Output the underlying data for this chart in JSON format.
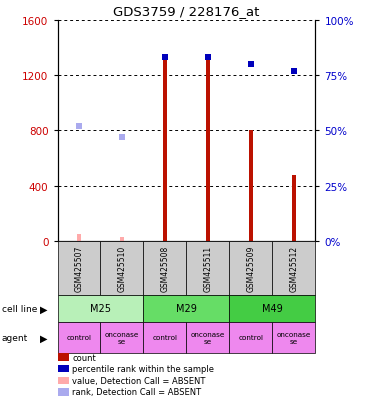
{
  "title": "GDS3759 / 228176_at",
  "samples": [
    "GSM425507",
    "GSM425510",
    "GSM425508",
    "GSM425511",
    "GSM425509",
    "GSM425512"
  ],
  "counts": [
    50,
    30,
    1340,
    1310,
    800,
    480
  ],
  "ranks_pct": [
    52,
    47,
    83,
    83,
    80,
    77
  ],
  "absent_mask": [
    true,
    true,
    false,
    false,
    false,
    false
  ],
  "cell_lines": [
    [
      "M25",
      0,
      2
    ],
    [
      "M29",
      2,
      4
    ],
    [
      "M49",
      4,
      6
    ]
  ],
  "cell_line_colors": [
    "#99ee99",
    "#44cc44",
    "#33bb33"
  ],
  "agents": [
    "control",
    "onconase\nse",
    "control",
    "onconase\nse",
    "control",
    "onconase\nse"
  ],
  "agent_color": "#ee88ee",
  "ylim_left": [
    0,
    1600
  ],
  "ylim_right": [
    0,
    100
  ],
  "yticks_left": [
    0,
    400,
    800,
    1200,
    1600
  ],
  "yticks_right": [
    0,
    25,
    50,
    75,
    100
  ],
  "bar_color": "#bb1100",
  "bar_color_absent": "#ffaaaa",
  "dot_color": "#0000bb",
  "dot_color_absent": "#aaaaee",
  "sample_bg_color": "#cccccc",
  "legend_items": [
    {
      "label": "count",
      "color": "#bb1100"
    },
    {
      "label": "percentile rank within the sample",
      "color": "#0000bb"
    },
    {
      "label": "value, Detection Call = ABSENT",
      "color": "#ffaaaa"
    },
    {
      "label": "rank, Detection Call = ABSENT",
      "color": "#aaaaee"
    }
  ]
}
